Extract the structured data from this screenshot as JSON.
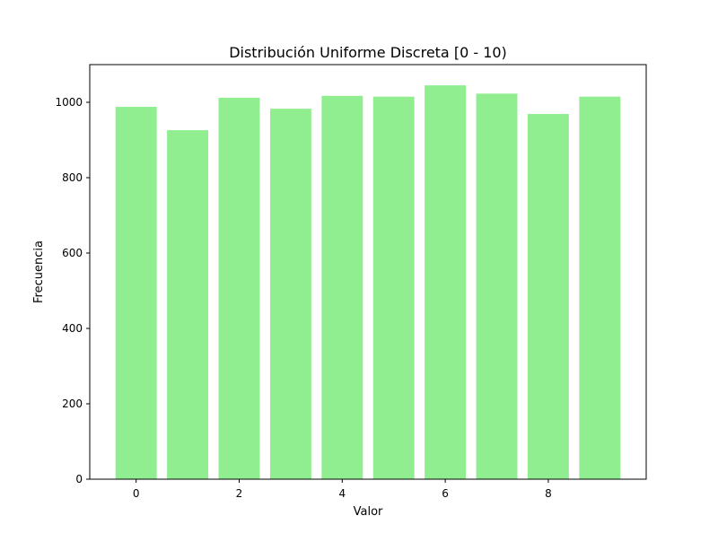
{
  "chart_data": {
    "type": "bar",
    "title": "Distribución Uniforme Discreta [0 - 10)",
    "xlabel": "Valor",
    "ylabel": "Frecuencia",
    "categories": [
      0,
      1,
      2,
      3,
      4,
      5,
      6,
      7,
      8,
      9
    ],
    "values": [
      988,
      926,
      1012,
      983,
      1017,
      1015,
      1045,
      1023,
      969,
      1015
    ],
    "xlim": [
      -0.9,
      9.9
    ],
    "ylim": [
      0,
      1100
    ],
    "xticks": [
      0,
      2,
      4,
      6,
      8
    ],
    "yticks": [
      0,
      200,
      400,
      600,
      800,
      1000
    ],
    "bar_color": "#90ee90",
    "grid": false,
    "legend": "none"
  }
}
